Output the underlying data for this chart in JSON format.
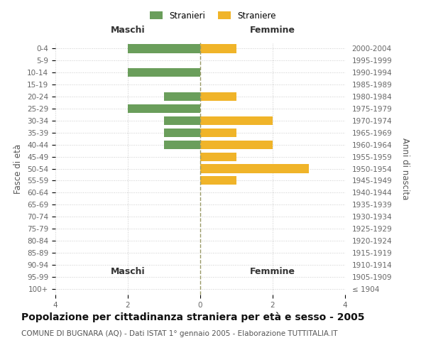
{
  "age_groups": [
    "100+",
    "95-99",
    "90-94",
    "85-89",
    "80-84",
    "75-79",
    "70-74",
    "65-69",
    "60-64",
    "55-59",
    "50-54",
    "45-49",
    "40-44",
    "35-39",
    "30-34",
    "25-29",
    "20-24",
    "15-19",
    "10-14",
    "5-9",
    "0-4"
  ],
  "birth_years": [
    "≤ 1904",
    "1905-1909",
    "1910-1914",
    "1915-1919",
    "1920-1924",
    "1925-1929",
    "1930-1934",
    "1935-1939",
    "1940-1944",
    "1945-1949",
    "1950-1954",
    "1955-1959",
    "1960-1964",
    "1965-1969",
    "1970-1974",
    "1975-1979",
    "1980-1984",
    "1985-1989",
    "1990-1994",
    "1995-1999",
    "2000-2004"
  ],
  "males": [
    0,
    0,
    0,
    0,
    0,
    0,
    0,
    0,
    0,
    0,
    0,
    0,
    1,
    1,
    1,
    2,
    1,
    0,
    2,
    0,
    2
  ],
  "females": [
    0,
    0,
    0,
    0,
    0,
    0,
    0,
    0,
    0,
    1,
    3,
    1,
    2,
    1,
    2,
    0,
    1,
    0,
    0,
    0,
    1
  ],
  "male_color": "#6a9e5b",
  "female_color": "#f0b429",
  "bar_height": 0.72,
  "title": "Popolazione per cittadinanza straniera per età e sesso - 2005",
  "subtitle": "COMUNE DI BUGNARA (AQ) - Dati ISTAT 1° gennaio 2005 - Elaborazione TUTTITALIA.IT",
  "xlabel_left": "Maschi",
  "xlabel_right": "Femmine",
  "ylabel_left": "Fasce di età",
  "ylabel_right": "Anni di nascita",
  "legend_stranieri": "Stranieri",
  "legend_straniere": "Straniere",
  "background_color": "#ffffff",
  "grid_color": "#cccccc",
  "title_fontsize": 10,
  "subtitle_fontsize": 7.5,
  "label_fontsize": 8.5,
  "tick_fontsize": 7.5,
  "header_fontsize": 9
}
